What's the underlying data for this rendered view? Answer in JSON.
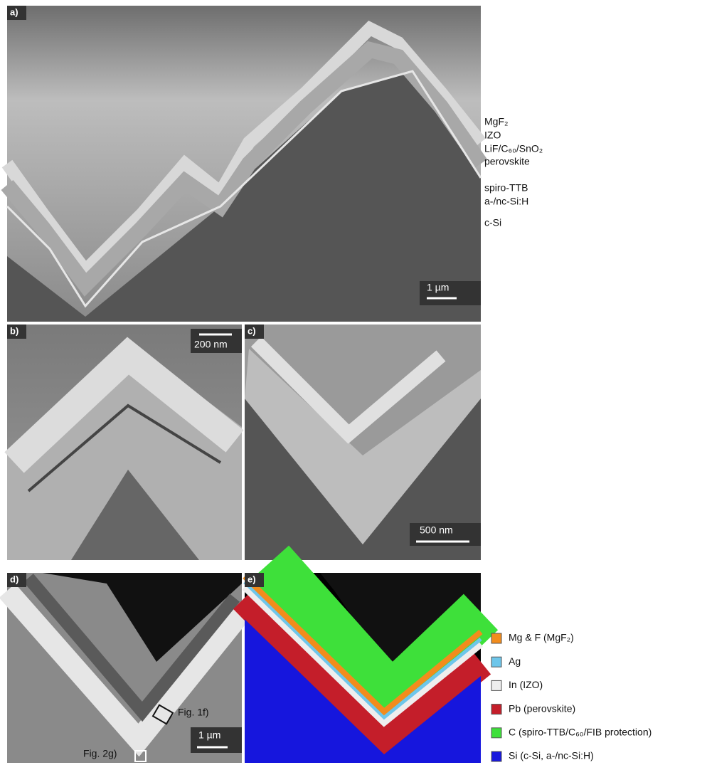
{
  "panel_labels": [
    "a)",
    "b)",
    "c)",
    "d)",
    "e)"
  ],
  "layer_labels": [
    "MgF₂",
    "IZO",
    "LiF/C₆₀/SnO₂",
    "perovskite",
    "spiro-TTB",
    "a-/nc-Si:H",
    "c-Si"
  ],
  "scale_bars": [
    "1 µm",
    "200 nm",
    "500 nm",
    "1 µm"
  ],
  "annotations": [
    "Fig. 1f)",
    "Fig. 2g)"
  ],
  "legend": [
    {
      "label": "Mg & F (MgF₂)",
      "color": "#f28c1c"
    },
    {
      "label": "Ag",
      "color": "#6ec6ea"
    },
    {
      "label": "In (IZO)",
      "color": "#eeeeee"
    },
    {
      "label": "Pb (perovskite)",
      "color": "#c41e2a"
    },
    {
      "label": "C (spiro-TTB/C₆₀/FIB protection)",
      "color": "#3ee03a"
    },
    {
      "label": "Si (c-Si, a-/nc-Si:H)",
      "color": "#1616dd"
    }
  ]
}
